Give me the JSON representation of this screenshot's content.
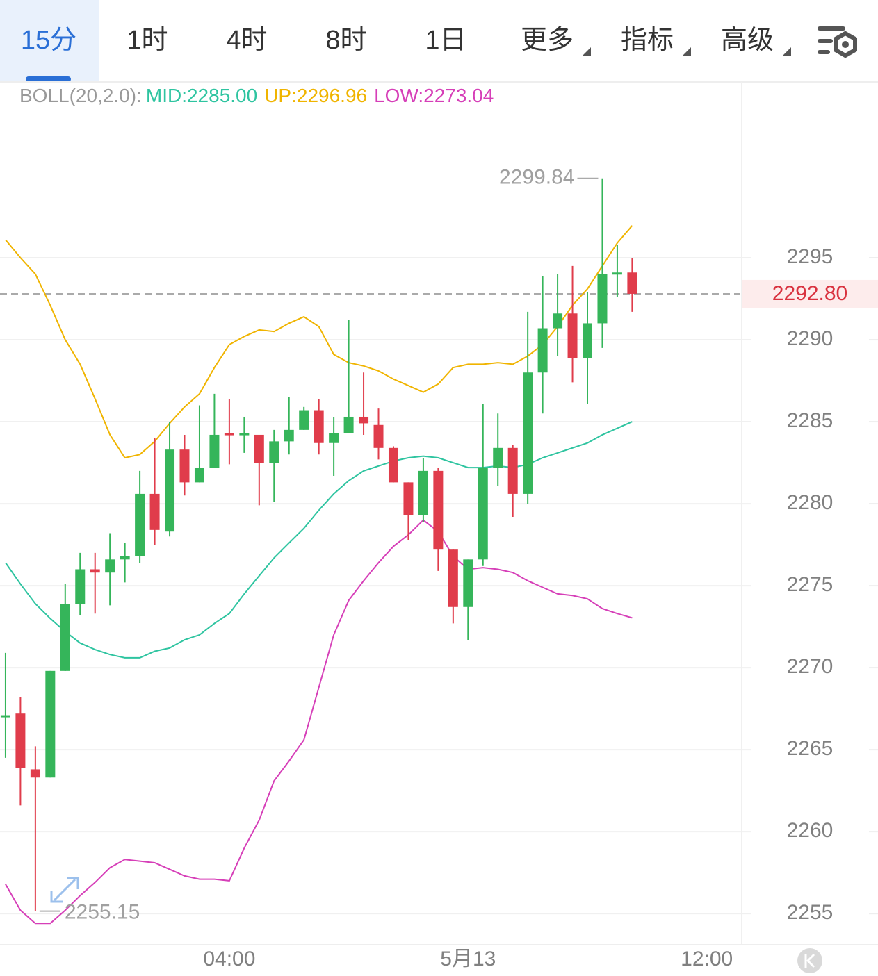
{
  "tabs": [
    "15分",
    "1时",
    "4时",
    "8时",
    "1日",
    "更多",
    "指标",
    "高级"
  ],
  "indicator": {
    "name": "BOLL(20,2.0):",
    "mid": "MID:2285.00",
    "up": "UP:2296.96",
    "low": "LOW:2273.04"
  },
  "chart_data": {
    "type": "candlestick",
    "up_color": "#35b55a",
    "down_color": "#e03c4b",
    "open": [
      2267.0,
      2267.2,
      2263.8,
      2263.3,
      2269.8,
      2273.9,
      2276.0,
      2275.8,
      2276.6,
      2276.8,
      2280.6,
      2278.3,
      2283.3,
      2281.3,
      2282.2,
      2284.3,
      2284.2,
      2284.2,
      2282.5,
      2283.8,
      2284.5,
      2285.7,
      2283.7,
      2284.3,
      2285.3,
      2284.8,
      2283.4,
      2281.3,
      2279.3,
      2282.0,
      2277.2,
      2273.7,
      2276.6,
      2282.2,
      2283.4,
      2280.6,
      2288.0,
      2290.7,
      2291.6,
      2288.9,
      2291.0,
      2294.0,
      2294.1
    ],
    "high": [
      2270.9,
      2268.2,
      2265.2,
      2269.8,
      2275.1,
      2277.0,
      2277.0,
      2278.2,
      2277.6,
      2282.0,
      2284.0,
      2285.0,
      2284.2,
      2286.0,
      2286.7,
      2286.4,
      2285.3,
      2284.2,
      2284.5,
      2286.5,
      2285.9,
      2286.4,
      2285.3,
      2291.2,
      2288.0,
      2285.8,
      2283.5,
      2281.3,
      2282.8,
      2282.2,
      2277.2,
      2276.6,
      2286.1,
      2285.5,
      2283.6,
      2291.7,
      2293.9,
      2294.0,
      2294.5,
      2292.9,
      2299.84,
      2295.8,
      2295.0
    ],
    "low": [
      2264.5,
      2261.6,
      2255.15,
      2263.3,
      2269.8,
      2273.2,
      2273.3,
      2273.8,
      2275.2,
      2276.4,
      2277.5,
      2278.0,
      2280.5,
      2281.3,
      2282.2,
      2282.4,
      2283.1,
      2279.9,
      2280.1,
      2283.0,
      2284.5,
      2283.0,
      2281.7,
      2284.3,
      2284.2,
      2282.7,
      2281.3,
      2277.8,
      2278.9,
      2275.9,
      2272.7,
      2271.7,
      2276.2,
      2281.1,
      2279.2,
      2280.0,
      2285.5,
      2289.0,
      2287.4,
      2286.1,
      2289.5,
      2292.6,
      2291.7
    ],
    "close": [
      2267.1,
      2263.9,
      2263.3,
      2269.8,
      2273.9,
      2276.0,
      2275.8,
      2276.6,
      2276.8,
      2280.6,
      2278.4,
      2283.3,
      2281.3,
      2282.2,
      2284.2,
      2284.2,
      2284.3,
      2282.5,
      2283.8,
      2284.5,
      2285.7,
      2283.7,
      2284.3,
      2285.3,
      2284.9,
      2283.4,
      2281.3,
      2279.3,
      2282.0,
      2277.2,
      2273.7,
      2276.6,
      2282.2,
      2283.4,
      2280.6,
      2288.0,
      2290.7,
      2291.6,
      2288.9,
      2291.0,
      2294.0,
      2294.1,
      2292.8
    ],
    "bands": [
      {
        "color": "#f0b400",
        "values": [
          2296.1,
          2295.0,
          2294.0,
          2292.1,
          2290.0,
          2288.5,
          2286.4,
          2284.2,
          2282.8,
          2283.0,
          2283.8,
          2284.9,
          2285.9,
          2286.7,
          2288.3,
          2289.7,
          2290.2,
          2290.6,
          2290.5,
          2291.0,
          2291.4,
          2290.8,
          2289.1,
          2288.6,
          2288.4,
          2288.1,
          2287.6,
          2287.2,
          2286.8,
          2287.3,
          2288.3,
          2288.5,
          2288.5,
          2288.6,
          2288.5,
          2289.0,
          2289.7,
          2290.8,
          2292.1,
          2293.1,
          2294.5,
          2295.9,
          2296.96
        ]
      },
      {
        "color": "#2ec4a0",
        "values": [
          2276.4,
          2275.1,
          2273.9,
          2273.0,
          2272.2,
          2271.5,
          2271.1,
          2270.8,
          2270.6,
          2270.6,
          2271.0,
          2271.2,
          2271.7,
          2272.0,
          2272.7,
          2273.3,
          2274.5,
          2275.6,
          2276.7,
          2277.6,
          2278.5,
          2279.6,
          2280.6,
          2281.4,
          2282.0,
          2282.3,
          2282.6,
          2282.8,
          2282.9,
          2282.8,
          2282.5,
          2282.2,
          2282.2,
          2282.3,
          2282.2,
          2282.4,
          2282.8,
          2283.1,
          2283.4,
          2283.7,
          2284.2,
          2284.6,
          2285.0
        ]
      },
      {
        "color": "#d63fb8",
        "values": [
          2256.8,
          2255.2,
          2254.4,
          2254.4,
          2255.2,
          2256.1,
          2256.9,
          2257.8,
          2258.3,
          2258.2,
          2258.1,
          2257.7,
          2257.3,
          2257.1,
          2257.1,
          2257.0,
          2259.0,
          2260.7,
          2263.1,
          2264.3,
          2265.6,
          2268.8,
          2272.0,
          2274.1,
          2275.3,
          2276.4,
          2277.4,
          2278.1,
          2279.0,
          2278.3,
          2276.8,
          2276.0,
          2276.1,
          2276.0,
          2275.8,
          2275.3,
          2274.9,
          2274.5,
          2274.4,
          2274.2,
          2273.6,
          2273.3,
          2273.04
        ]
      }
    ],
    "ylim": [
      2253.1,
      2305.72
    ],
    "yticks": [
      2255,
      2260,
      2265,
      2270,
      2275,
      2280,
      2285,
      2290,
      2295
    ],
    "xlim": [
      -0.37,
      49.25
    ],
    "xticks": [
      {
        "value": 15,
        "label": "04:00"
      },
      {
        "value": 31,
        "label": "5月13"
      },
      {
        "value": 47,
        "label": "12:00"
      }
    ],
    "last_price": {
      "value": 2292.8,
      "label": "2292.80"
    },
    "max_label": 2299.84,
    "min_label": 2255.15,
    "grid": true
  }
}
